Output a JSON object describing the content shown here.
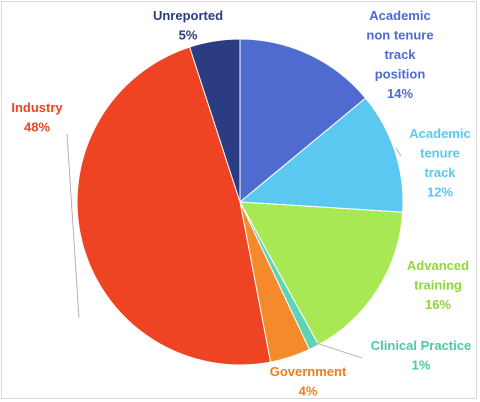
{
  "chart_data": {
    "type": "pie",
    "start_angle_deg": 0,
    "direction": "clockwise",
    "slices": [
      {
        "name": "Academic non tenure track position",
        "label_lines": [
          "Academic",
          "non tenure",
          "track",
          "position"
        ],
        "value": 14,
        "value_label": "14%",
        "color": "#4f6bd0",
        "label_color": "#4f6bd0"
      },
      {
        "name": "Academic tenure track",
        "label_lines": [
          "Academic",
          "tenure",
          "track"
        ],
        "value": 12,
        "value_label": "12%",
        "color": "#5bc8f2",
        "label_color": "#5bc8f2"
      },
      {
        "name": "Advanced training",
        "label_lines": [
          "Advanced",
          "training"
        ],
        "value": 16,
        "value_label": "16%",
        "color": "#a8e855",
        "label_color": "#8fd63a"
      },
      {
        "name": "Clinical Practice",
        "label_lines": [
          "Clinical Practice"
        ],
        "value": 1,
        "value_label": "1%",
        "color": "#5fd3b3",
        "label_color": "#4cc9a5"
      },
      {
        "name": "Government",
        "label_lines": [
          "Government"
        ],
        "value": 4,
        "value_label": "4%",
        "color": "#f58a2b",
        "label_color": "#f07d1f"
      },
      {
        "name": "Industry",
        "label_lines": [
          "Industry"
        ],
        "value": 48,
        "value_label": "48%",
        "color": "#ef4423",
        "label_color": "#ef4423"
      },
      {
        "name": "Unreported",
        "label_lines": [
          "Unreported"
        ],
        "value": 5,
        "value_label": "5%",
        "color": "#2b3c82",
        "label_color": "#2b3c82"
      }
    ]
  }
}
